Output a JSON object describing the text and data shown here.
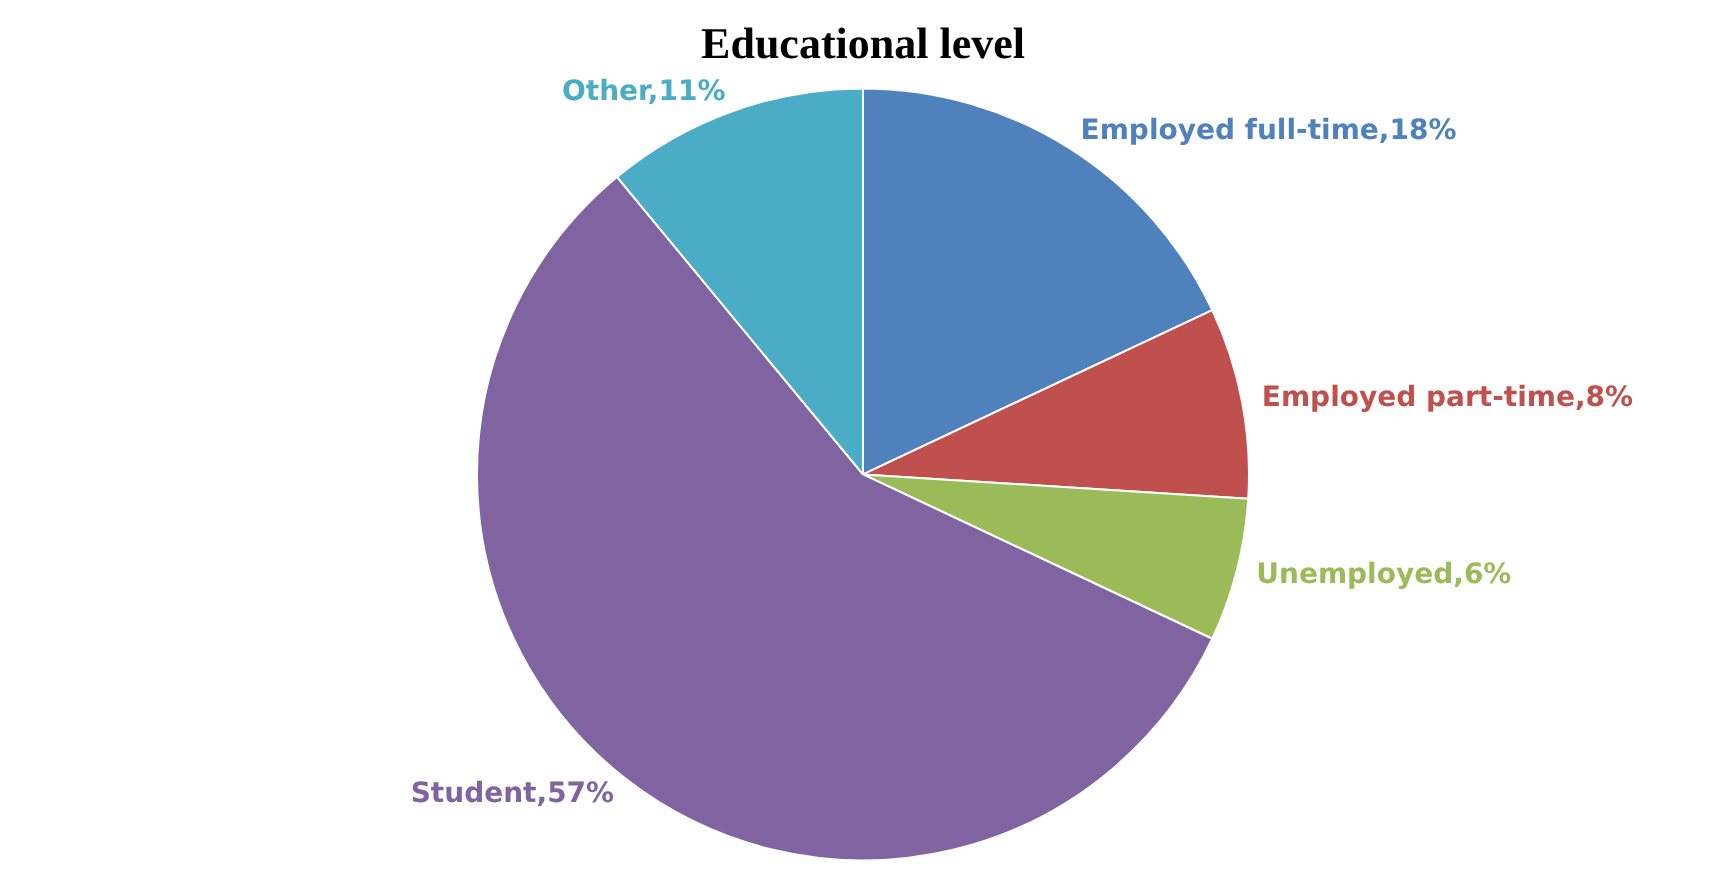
{
  "chart_data": {
    "type": "pie",
    "title": "Educational level",
    "categories": [
      "Employed full-time",
      "Employed part-time",
      "Unemployed",
      "Student",
      "Other"
    ],
    "values": [
      18,
      8,
      6,
      57,
      11
    ],
    "colors": [
      "#4f81bd",
      "#c0504d",
      "#9bbb59",
      "#8064a2",
      "#4bacc6"
    ],
    "value_labels": [
      "18%",
      "8%",
      "6%",
      "57%",
      "11%"
    ],
    "legend": false
  }
}
